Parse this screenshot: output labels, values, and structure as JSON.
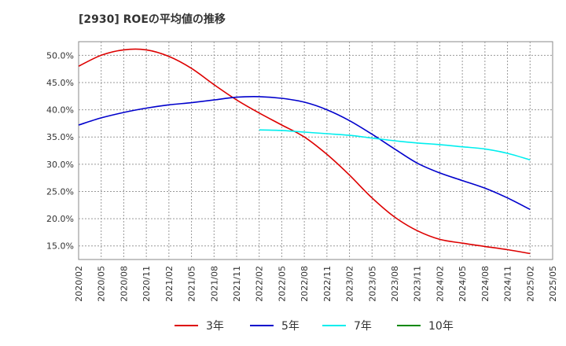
{
  "chart_data": {
    "type": "line",
    "title": "[2930]  ROEの平均値の推移",
    "xlabel": "",
    "ylabel": "",
    "x_ticks": [
      "2020/02",
      "2020/05",
      "2020/08",
      "2020/11",
      "2021/02",
      "2021/05",
      "2021/08",
      "2021/11",
      "2022/02",
      "2022/05",
      "2022/08",
      "2022/11",
      "2023/02",
      "2023/05",
      "2023/08",
      "2023/11",
      "2024/02",
      "2024/05",
      "2024/08",
      "2024/11",
      "2025/02",
      "2025/05"
    ],
    "y_ticks": [
      "15.0%",
      "20.0%",
      "25.0%",
      "30.0%",
      "35.0%",
      "40.0%",
      "45.0%",
      "50.0%"
    ],
    "ylim": [
      12.5,
      52.5
    ],
    "grid": true,
    "legend_position": "bottom",
    "series": [
      {
        "name": "3年",
        "color": "#dd0000",
        "points": [
          [
            "2020/02",
            48.0
          ],
          [
            "2020/05",
            50.0
          ],
          [
            "2020/08",
            51.0
          ],
          [
            "2020/11",
            51.0
          ],
          [
            "2021/02",
            49.8
          ],
          [
            "2021/05",
            47.6
          ],
          [
            "2021/08",
            44.6
          ],
          [
            "2021/11",
            41.8
          ],
          [
            "2022/02",
            39.4
          ],
          [
            "2022/05",
            37.2
          ],
          [
            "2022/08",
            35.0
          ],
          [
            "2022/11",
            31.8
          ],
          [
            "2023/02",
            28.0
          ],
          [
            "2023/05",
            23.8
          ],
          [
            "2023/08",
            20.3
          ],
          [
            "2023/11",
            17.8
          ],
          [
            "2024/02",
            16.2
          ],
          [
            "2024/05",
            15.5
          ],
          [
            "2024/08",
            14.9
          ],
          [
            "2024/11",
            14.3
          ],
          [
            "2025/02",
            13.6
          ]
        ]
      },
      {
        "name": "5年",
        "color": "#0000cc",
        "points": [
          [
            "2020/02",
            37.2
          ],
          [
            "2020/05",
            38.5
          ],
          [
            "2020/08",
            39.5
          ],
          [
            "2020/11",
            40.3
          ],
          [
            "2021/02",
            40.9
          ],
          [
            "2021/05",
            41.3
          ],
          [
            "2021/08",
            41.8
          ],
          [
            "2021/11",
            42.3
          ],
          [
            "2022/02",
            42.4
          ],
          [
            "2022/05",
            42.1
          ],
          [
            "2022/08",
            41.4
          ],
          [
            "2022/11",
            40.0
          ],
          [
            "2023/02",
            38.0
          ],
          [
            "2023/05",
            35.5
          ],
          [
            "2023/08",
            32.8
          ],
          [
            "2023/11",
            30.2
          ],
          [
            "2024/02",
            28.4
          ],
          [
            "2024/05",
            27.0
          ],
          [
            "2024/08",
            25.6
          ],
          [
            "2024/11",
            23.8
          ],
          [
            "2025/02",
            21.7
          ]
        ]
      },
      {
        "name": "7年",
        "color": "#00eeee",
        "points": [
          [
            "2022/02",
            36.3
          ],
          [
            "2022/05",
            36.2
          ],
          [
            "2022/08",
            35.9
          ],
          [
            "2022/11",
            35.6
          ],
          [
            "2023/02",
            35.3
          ],
          [
            "2023/05",
            34.8
          ],
          [
            "2023/08",
            34.3
          ],
          [
            "2023/11",
            33.9
          ],
          [
            "2024/02",
            33.6
          ],
          [
            "2024/05",
            33.2
          ],
          [
            "2024/08",
            32.8
          ],
          [
            "2024/11",
            32.0
          ],
          [
            "2025/02",
            30.8
          ]
        ]
      },
      {
        "name": "10年",
        "color": "#008800",
        "points": []
      }
    ]
  }
}
